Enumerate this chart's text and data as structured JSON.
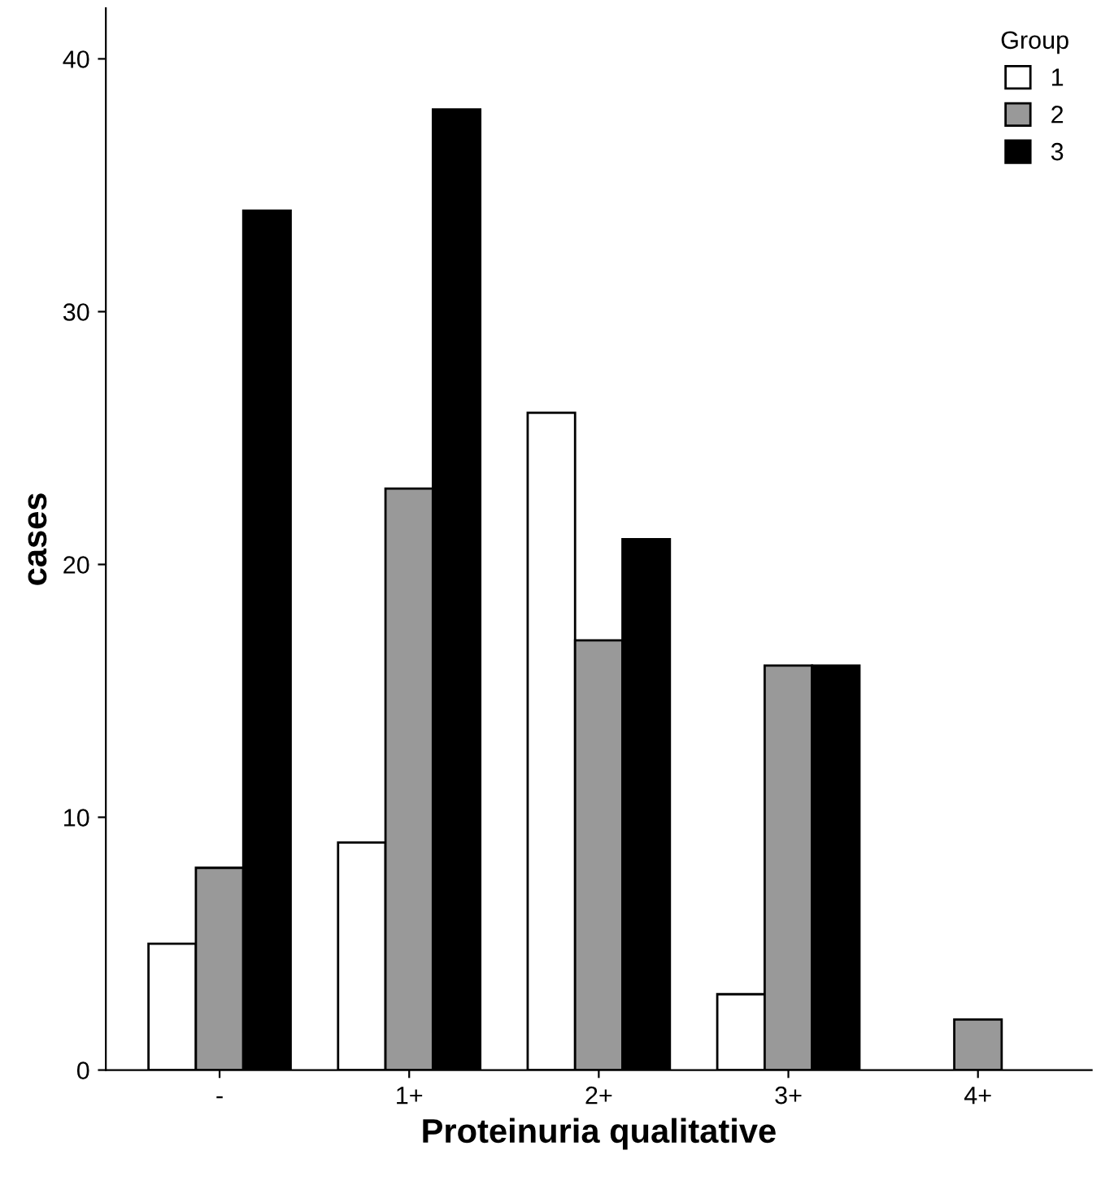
{
  "chart_data": {
    "type": "bar",
    "xlabel": "Proteinuria qualitative",
    "ylabel": "cases",
    "legend_title": "Group",
    "categories": [
      "-",
      "1+",
      "2+",
      "3+",
      "4+"
    ],
    "series": [
      {
        "name": "1",
        "color": "#ffffff",
        "values": [
          5,
          9,
          26,
          3,
          0
        ]
      },
      {
        "name": "2",
        "color": "#999999",
        "values": [
          8,
          23,
          17,
          16,
          2
        ]
      },
      {
        "name": "3",
        "color": "#000000",
        "values": [
          34,
          38,
          21,
          16,
          0
        ]
      }
    ],
    "ylim": [
      0,
      42
    ],
    "yticks": [
      0,
      10,
      20,
      30,
      40
    ],
    "grid": false,
    "legend": "top right"
  }
}
